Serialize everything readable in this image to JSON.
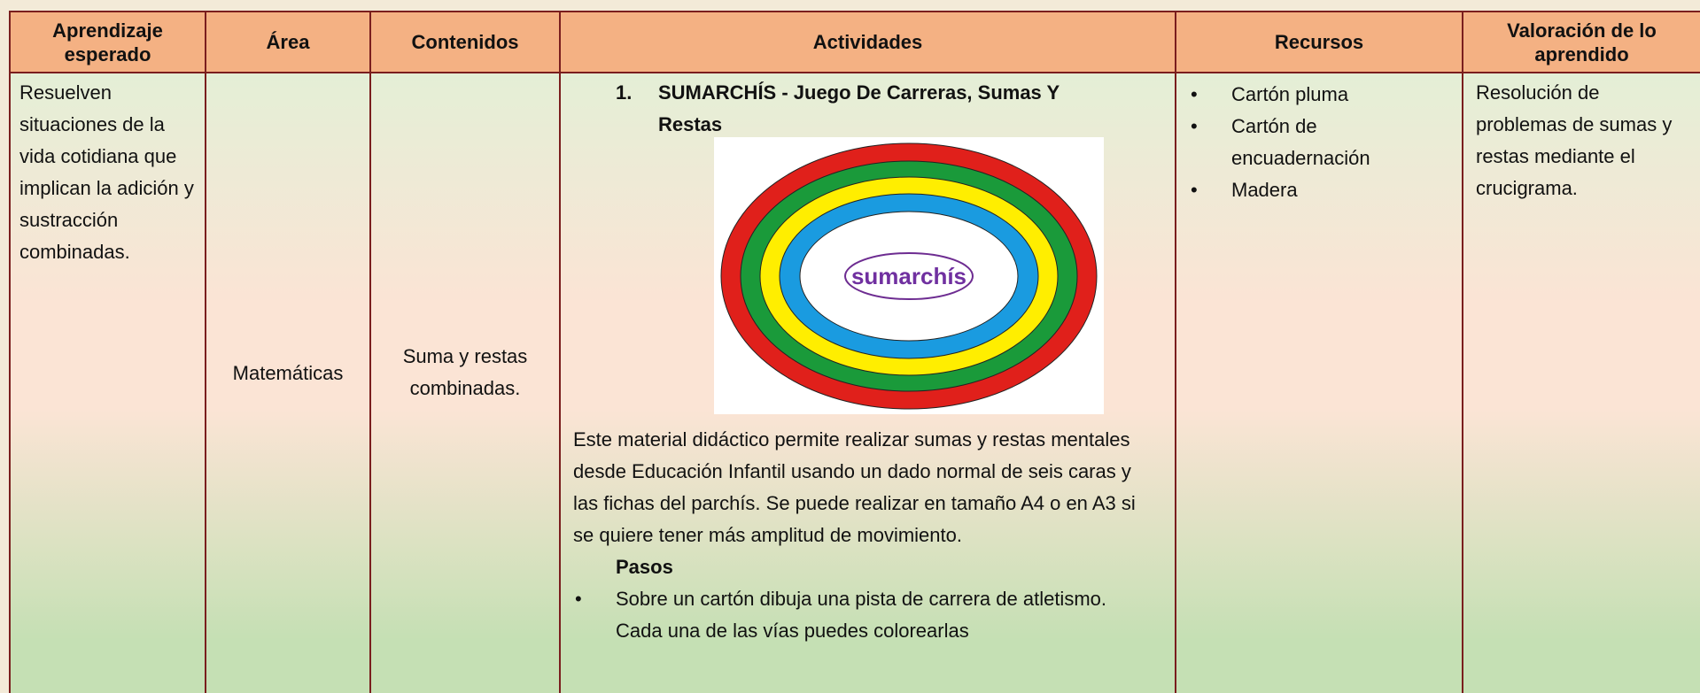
{
  "header": [
    "Aprendizaje esperado",
    "Área",
    "Contenidos",
    "Actividades",
    "Recursos",
    "Valoración de lo aprendido"
  ],
  "row": {
    "aprendizaje": "Resuelven situaciones de la vida cotidiana que implican la adición y sustracción combinadas.",
    "area": "Matemáticas",
    "contenidos": "Suma y restas combinadas.",
    "actividades": {
      "number": "1.",
      "title": "SUMARCHÍS - Juego De Carreras, Sumas Y Restas",
      "board_label": "sumarchís",
      "description": "Este material didáctico permite realizar sumas y restas mentales desde Educación Infantil usando un dado normal de seis caras y las fichas del parchís. Se puede realizar en tamaño A4 o en A3 si se quiere tener más amplitud de movimiento.",
      "steps_title": "Pasos",
      "steps": [
        "Sobre un cartón dibuja una pista de carrera de atletismo. Cada una de las vías puedes colorearlas"
      ]
    },
    "recursos": [
      "Cartón pluma",
      "Cartón de encuadernación",
      "Madera"
    ],
    "valoracion": "Resolución de problemas de sumas y restas mediante el crucigrama."
  }
}
